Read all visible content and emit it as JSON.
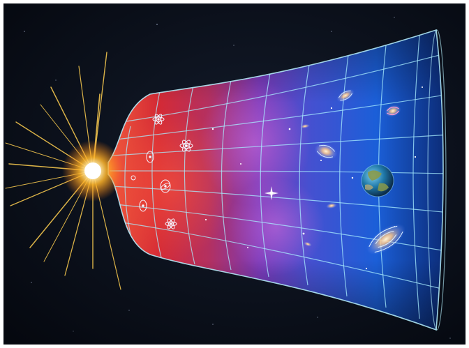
{
  "image": {
    "subject": "big-bang-universe-expansion-illustration",
    "background_color": "#080d16",
    "frame_color": "#ffffff",
    "palette": {
      "flash_core": "#fff6c8",
      "flash_glow": "#ffb428",
      "early_universe": "#d42a35",
      "middle_universe": "#7a3ab8",
      "late_universe": "#1b5fd8",
      "grid_lines": "#a8eeff",
      "planet_ocean": "#1f78a8",
      "planet_land": "#8a9a4a"
    },
    "icons": [
      "starburst-icon",
      "atom-icon",
      "spiral-galaxy-icon",
      "planet-icon",
      "star-icon"
    ]
  }
}
